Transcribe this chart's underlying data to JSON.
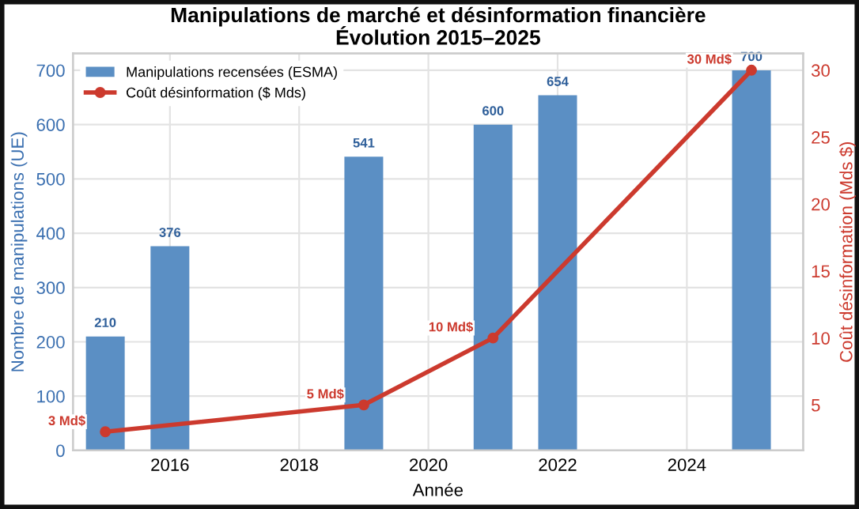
{
  "chart_data": {
    "type": "bar",
    "title": "Manipulations de marché et désinformation financière\nÉvolution 2015–2025",
    "xlabel": "Année",
    "ylabel": "Nombre de manipulations (UE)",
    "y2label": "Coût désinformation (Mds $)",
    "x": [
      2015,
      2016,
      2019,
      2021,
      2022,
      2025
    ],
    "series": [
      {
        "name": "Manipulations recensées (ESMA)",
        "color": "#5b8fc4",
        "values": [
          210,
          376,
          541,
          600,
          654,
          700
        ],
        "value_labels": [
          "210",
          "376",
          "541",
          "600",
          "654",
          "700"
        ]
      },
      {
        "name": "Coût désinformation ($ Mds)",
        "type": "line",
        "axis": "y2",
        "color": "#cc3a2e",
        "x": [
          2015,
          2019,
          2021,
          2025
        ],
        "values": [
          3,
          5,
          10,
          30
        ],
        "value_labels": [
          "3 Md$",
          "5 Md$",
          "10 Md$",
          "30 Md$"
        ],
        "marker": "circle"
      }
    ],
    "xlim": [
      2014.5,
      2025.8
    ],
    "xticks": [
      2016,
      2018,
      2020,
      2022,
      2024
    ],
    "ylim": [
      0,
      731
    ],
    "yticks": [
      0,
      100,
      200,
      300,
      400,
      500,
      600,
      700
    ],
    "y2lim": [
      1.6,
      31.25
    ],
    "y2ticks": [
      5,
      10,
      15,
      20,
      25,
      30
    ],
    "grid": true,
    "legend": "top left"
  }
}
